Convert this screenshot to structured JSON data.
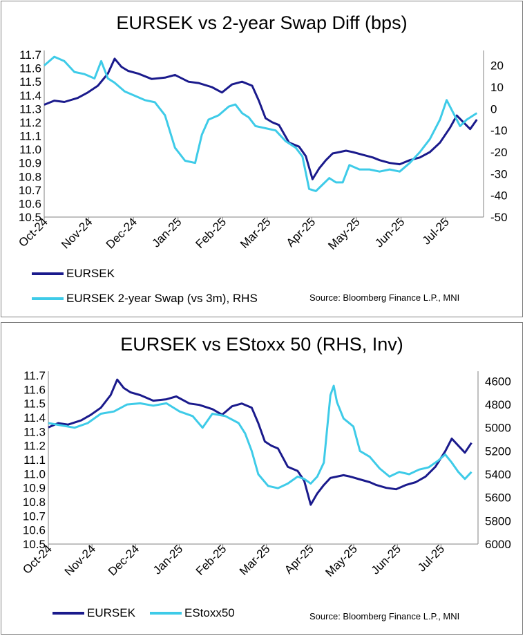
{
  "colors": {
    "eursek": "#1a1a8c",
    "secondary": "#3ecbe8",
    "axis": "#808080"
  },
  "chart_data": [
    {
      "type": "line",
      "title": "EURSEK vs 2-year Swap Diff (bps)",
      "x_ticks": [
        "Oct-24",
        "Nov-24",
        "Dec-24",
        "Jan-25",
        "Feb-25",
        "Mar-25",
        "Apr-25",
        "May-25",
        "Jun-25",
        "Jul-25"
      ],
      "y_left": {
        "min": 10.5,
        "max": 11.7,
        "step": 0.1,
        "labels": [
          "11.7",
          "11.6",
          "11.5",
          "11.4",
          "11.3",
          "11.2",
          "11.1",
          "11.0",
          "10.9",
          "10.8",
          "10.7",
          "10.6",
          "10.5"
        ]
      },
      "y_right": {
        "min": -50,
        "max": 25,
        "labels": [
          "20",
          "10",
          "0",
          "-10",
          "-20",
          "-30",
          "-40",
          "-50"
        ],
        "values": [
          20,
          10,
          0,
          -10,
          -20,
          -30,
          -40,
          -50
        ]
      },
      "series": [
        {
          "name": "EURSEK",
          "axis": "left",
          "points": [
            [
              0,
              11.33
            ],
            [
              0.3,
              11.36
            ],
            [
              0.6,
              11.35
            ],
            [
              1.0,
              11.38
            ],
            [
              1.3,
              11.42
            ],
            [
              1.6,
              11.47
            ],
            [
              1.9,
              11.56
            ],
            [
              2.1,
              11.67
            ],
            [
              2.3,
              11.61
            ],
            [
              2.5,
              11.58
            ],
            [
              2.8,
              11.56
            ],
            [
              3.2,
              11.52
            ],
            [
              3.6,
              11.53
            ],
            [
              3.9,
              11.55
            ],
            [
              4.3,
              11.5
            ],
            [
              4.6,
              11.49
            ],
            [
              5.0,
              11.46
            ],
            [
              5.3,
              11.42
            ],
            [
              5.6,
              11.48
            ],
            [
              5.9,
              11.5
            ],
            [
              6.2,
              11.47
            ],
            [
              6.4,
              11.36
            ],
            [
              6.6,
              11.23
            ],
            [
              6.8,
              11.2
            ],
            [
              7.0,
              11.18
            ],
            [
              7.3,
              11.05
            ],
            [
              7.6,
              11.02
            ],
            [
              7.8,
              10.95
            ],
            [
              8.0,
              10.78
            ],
            [
              8.2,
              10.86
            ],
            [
              8.4,
              10.92
            ],
            [
              8.6,
              10.97
            ],
            [
              8.8,
              10.98
            ],
            [
              9.0,
              10.99
            ],
            [
              9.2,
              10.98
            ],
            [
              9.5,
              10.96
            ],
            [
              9.8,
              10.94
            ],
            [
              10.0,
              10.92
            ],
            [
              10.3,
              10.9
            ],
            [
              10.6,
              10.89
            ],
            [
              10.9,
              10.92
            ],
            [
              11.2,
              10.94
            ],
            [
              11.5,
              10.98
            ],
            [
              11.8,
              11.05
            ],
            [
              12.1,
              11.16
            ],
            [
              12.3,
              11.25
            ],
            [
              12.5,
              11.2
            ],
            [
              12.7,
              11.15
            ],
            [
              12.9,
              11.22
            ]
          ]
        },
        {
          "name": "EURSEK 2-year Swap (vs 3m), RHS",
          "axis": "right",
          "points": [
            [
              0,
              20
            ],
            [
              0.3,
              24
            ],
            [
              0.6,
              22
            ],
            [
              0.9,
              17
            ],
            [
              1.2,
              16
            ],
            [
              1.5,
              14
            ],
            [
              1.7,
              22
            ],
            [
              1.9,
              14
            ],
            [
              2.1,
              12
            ],
            [
              2.4,
              8
            ],
            [
              2.7,
              6
            ],
            [
              3.0,
              4
            ],
            [
              3.3,
              3
            ],
            [
              3.6,
              -3
            ],
            [
              3.9,
              -18
            ],
            [
              4.2,
              -24
            ],
            [
              4.5,
              -25
            ],
            [
              4.7,
              -12
            ],
            [
              4.9,
              -5
            ],
            [
              5.2,
              -3
            ],
            [
              5.5,
              1
            ],
            [
              5.7,
              2
            ],
            [
              5.9,
              -2
            ],
            [
              6.1,
              -4
            ],
            [
              6.3,
              -8
            ],
            [
              6.6,
              -9
            ],
            [
              6.9,
              -10
            ],
            [
              7.2,
              -15
            ],
            [
              7.5,
              -18
            ],
            [
              7.7,
              -22
            ],
            [
              7.9,
              -37
            ],
            [
              8.1,
              -38
            ],
            [
              8.3,
              -35
            ],
            [
              8.5,
              -32
            ],
            [
              8.7,
              -34
            ],
            [
              8.9,
              -34
            ],
            [
              9.1,
              -26
            ],
            [
              9.4,
              -28
            ],
            [
              9.7,
              -28
            ],
            [
              10.0,
              -29
            ],
            [
              10.3,
              -28
            ],
            [
              10.6,
              -29
            ],
            [
              10.9,
              -25
            ],
            [
              11.2,
              -20
            ],
            [
              11.5,
              -14
            ],
            [
              11.8,
              -5
            ],
            [
              12.0,
              4
            ],
            [
              12.2,
              -2
            ],
            [
              12.4,
              -8
            ],
            [
              12.6,
              -5
            ],
            [
              12.9,
              -2
            ]
          ]
        }
      ]
    },
    {
      "type": "line",
      "title": "EURSEK vs EStoxx 50 (RHS, Inv)",
      "x_ticks": [
        "Oct-24",
        "Nov-24",
        "Dec-24",
        "Jan-25",
        "Feb-25",
        "Mar-25",
        "Apr-25",
        "May-25",
        "Jun-25",
        "Jul-25"
      ],
      "y_left": {
        "min": 10.5,
        "max": 11.7,
        "step": 0.1,
        "labels": [
          "11.7",
          "11.6",
          "11.5",
          "11.4",
          "11.3",
          "11.2",
          "11.1",
          "11.0",
          "10.9",
          "10.8",
          "10.7",
          "10.6",
          "10.5"
        ]
      },
      "y_right": {
        "min": 4550,
        "max": 6000,
        "inverted": true,
        "labels": [
          "4600",
          "4800",
          "5000",
          "5200",
          "5400",
          "5600",
          "5800",
          "6000"
        ],
        "values": [
          4600,
          4800,
          5000,
          5200,
          5400,
          5600,
          5800,
          6000
        ]
      },
      "series": [
        {
          "name": "EURSEK",
          "axis": "left",
          "points": [
            [
              0,
              11.33
            ],
            [
              0.3,
              11.36
            ],
            [
              0.6,
              11.35
            ],
            [
              1.0,
              11.38
            ],
            [
              1.3,
              11.42
            ],
            [
              1.6,
              11.47
            ],
            [
              1.9,
              11.56
            ],
            [
              2.1,
              11.67
            ],
            [
              2.3,
              11.61
            ],
            [
              2.5,
              11.58
            ],
            [
              2.8,
              11.56
            ],
            [
              3.2,
              11.52
            ],
            [
              3.6,
              11.53
            ],
            [
              3.9,
              11.55
            ],
            [
              4.3,
              11.5
            ],
            [
              4.6,
              11.49
            ],
            [
              5.0,
              11.46
            ],
            [
              5.3,
              11.42
            ],
            [
              5.6,
              11.48
            ],
            [
              5.9,
              11.5
            ],
            [
              6.2,
              11.47
            ],
            [
              6.4,
              11.36
            ],
            [
              6.6,
              11.23
            ],
            [
              6.8,
              11.2
            ],
            [
              7.0,
              11.18
            ],
            [
              7.3,
              11.05
            ],
            [
              7.6,
              11.02
            ],
            [
              7.8,
              10.95
            ],
            [
              8.0,
              10.78
            ],
            [
              8.2,
              10.86
            ],
            [
              8.4,
              10.92
            ],
            [
              8.6,
              10.97
            ],
            [
              8.8,
              10.98
            ],
            [
              9.0,
              10.99
            ],
            [
              9.2,
              10.98
            ],
            [
              9.5,
              10.96
            ],
            [
              9.8,
              10.94
            ],
            [
              10.0,
              10.92
            ],
            [
              10.3,
              10.9
            ],
            [
              10.6,
              10.89
            ],
            [
              10.9,
              10.92
            ],
            [
              11.2,
              10.94
            ],
            [
              11.5,
              10.98
            ],
            [
              11.8,
              11.05
            ],
            [
              12.1,
              11.16
            ],
            [
              12.3,
              11.25
            ],
            [
              12.5,
              11.2
            ],
            [
              12.7,
              11.15
            ],
            [
              12.9,
              11.22
            ]
          ]
        },
        {
          "name": "EStoxx50",
          "axis": "right",
          "points": [
            [
              0,
              4960
            ],
            [
              0.4,
              4980
            ],
            [
              0.8,
              5000
            ],
            [
              1.2,
              4960
            ],
            [
              1.6,
              4880
            ],
            [
              2.0,
              4860
            ],
            [
              2.4,
              4800
            ],
            [
              2.8,
              4790
            ],
            [
              3.2,
              4810
            ],
            [
              3.6,
              4790
            ],
            [
              4.0,
              4860
            ],
            [
              4.4,
              4900
            ],
            [
              4.7,
              5000
            ],
            [
              5.0,
              4880
            ],
            [
              5.4,
              4900
            ],
            [
              5.8,
              4960
            ],
            [
              6.0,
              5050
            ],
            [
              6.2,
              5200
            ],
            [
              6.4,
              5400
            ],
            [
              6.7,
              5500
            ],
            [
              7.0,
              5520
            ],
            [
              7.3,
              5480
            ],
            [
              7.6,
              5420
            ],
            [
              7.8,
              5440
            ],
            [
              8.0,
              5480
            ],
            [
              8.2,
              5420
            ],
            [
              8.4,
              5300
            ],
            [
              8.6,
              4720
            ],
            [
              8.7,
              4640
            ],
            [
              8.8,
              4780
            ],
            [
              9.0,
              4920
            ],
            [
              9.3,
              4990
            ],
            [
              9.5,
              5200
            ],
            [
              9.8,
              5250
            ],
            [
              10.1,
              5350
            ],
            [
              10.4,
              5420
            ],
            [
              10.7,
              5380
            ],
            [
              11.0,
              5400
            ],
            [
              11.3,
              5360
            ],
            [
              11.6,
              5340
            ],
            [
              11.9,
              5280
            ],
            [
              12.1,
              5230
            ],
            [
              12.3,
              5300
            ],
            [
              12.5,
              5380
            ],
            [
              12.7,
              5440
            ],
            [
              12.9,
              5380
            ]
          ]
        }
      ]
    }
  ],
  "legend_top": {
    "item1": "EURSEK",
    "item2": "EURSEK 2-year Swap (vs 3m), RHS"
  },
  "legend_bottom": {
    "item1": "EURSEK",
    "item2": "EStoxx50"
  },
  "source_text": "Source: Bloomberg Finance L.P., MNI"
}
